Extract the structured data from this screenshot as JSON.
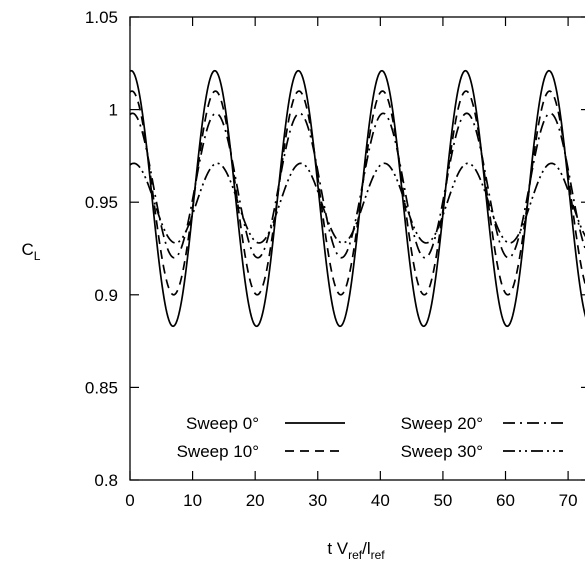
{
  "chart_data": {
    "type": "line",
    "title": "",
    "xlabel": {
      "main": "t V",
      "sub1": "ref",
      "mid": "/l",
      "sub2": "ref"
    },
    "ylabel": {
      "main": "C",
      "sub": "L"
    },
    "xlim": [
      0,
      73.5
    ],
    "ylim": [
      0.8,
      1.05
    ],
    "xticks": [
      "0",
      "10",
      "20",
      "30",
      "40",
      "50",
      "60",
      "70"
    ],
    "xtick_values": [
      0,
      10,
      20,
      30,
      40,
      50,
      60,
      70
    ],
    "yticks": [
      "0.8",
      "0.85",
      "0.9",
      "0.95",
      "1",
      "1.05"
    ],
    "ytick_values": [
      0.8,
      0.85,
      0.9,
      0.95,
      1.0,
      1.05
    ],
    "grid": false,
    "legend_position": "bottom",
    "period": 13.35,
    "series": [
      {
        "name": "Sweep 0°",
        "dash": "solid",
        "mean": 0.952,
        "amplitude": 0.069,
        "peak_x": 0.2
      },
      {
        "name": "Sweep 10°",
        "dash": "dashed",
        "mean": 0.955,
        "amplitude": 0.055,
        "peak_x": 0.3
      },
      {
        "name": "Sweep 20°",
        "dash": "dashdot",
        "mean": 0.959,
        "amplitude": 0.039,
        "peak_x": 0.4
      },
      {
        "name": "Sweep 30°",
        "dash": "dashdotdot",
        "mean": 0.9495,
        "amplitude": 0.0215,
        "peak_x": 0.6
      }
    ]
  }
}
